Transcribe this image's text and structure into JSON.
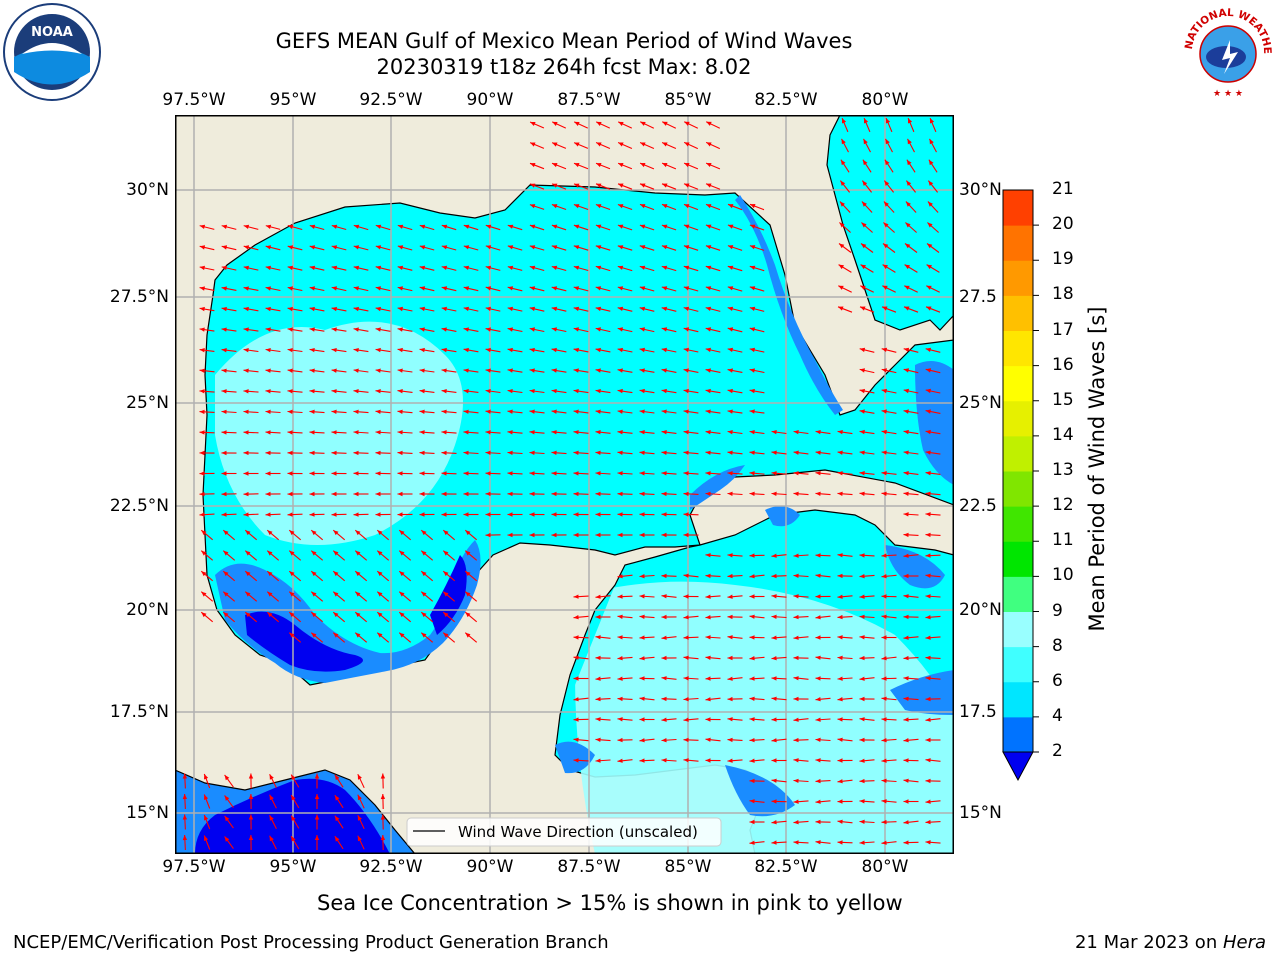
{
  "title": {
    "line1": "GEFS MEAN Gulf of Mexico Mean Period of Wind Waves",
    "line2": "20230319 t18z 264h fcst   Max: 8.02"
  },
  "logos": {
    "noaa_text": "NOAA",
    "nws_text": "NATIONAL WEATHER SERVICE"
  },
  "lon_ticks": [
    "97.5°W",
    "95°W",
    "92.5°W",
    "90°W",
    "87.5°W",
    "85°W",
    "82.5°W",
    "80°W"
  ],
  "lat_ticks_left": [
    "30°N",
    "27.5°N",
    "25°N",
    "22.5°N",
    "20°N",
    "17.5°N",
    "15°N"
  ],
  "lat_ticks_right": [
    "30°N",
    "27.5",
    "25°N",
    "22.5",
    "20°N",
    "17.5",
    "15°N"
  ],
  "legend": {
    "label": "Wind Wave Direction (unscaled)"
  },
  "colorbar": {
    "label": "Mean Period of Wind Waves [s]",
    "ticks": [
      "2",
      "4",
      "6",
      "8",
      "9",
      "10",
      "11",
      "12",
      "13",
      "14",
      "15",
      "16",
      "17",
      "18",
      "19",
      "20",
      "21"
    ],
    "colors": [
      "#0073ff",
      "#00e6ff",
      "#40ffff",
      "#99ffff",
      "#40ff80",
      "#00e600",
      "#40e600",
      "#80e600",
      "#c0f000",
      "#e6f000",
      "#ffff00",
      "#ffe600",
      "#ffc000",
      "#ff9900",
      "#ff7300",
      "#ff4000",
      "#ff0000"
    ],
    "under_color": "#0000f0"
  },
  "colors": {
    "land": "#efecdc",
    "water": "#00ffff",
    "water_light": "#a0ffff",
    "water_mid": "#1a8cff",
    "water_deep": "#0000f0",
    "arrow": "#ff0000",
    "grid": "#b0b0b0"
  },
  "caption": "Sea Ice Concentration > 15% is shown in pink to yellow",
  "footer": {
    "left": "NCEP/EMC/Verification Post Processing Product Generation Branch",
    "right_date": "21 Mar 2023 on ",
    "right_host": "Hera"
  }
}
